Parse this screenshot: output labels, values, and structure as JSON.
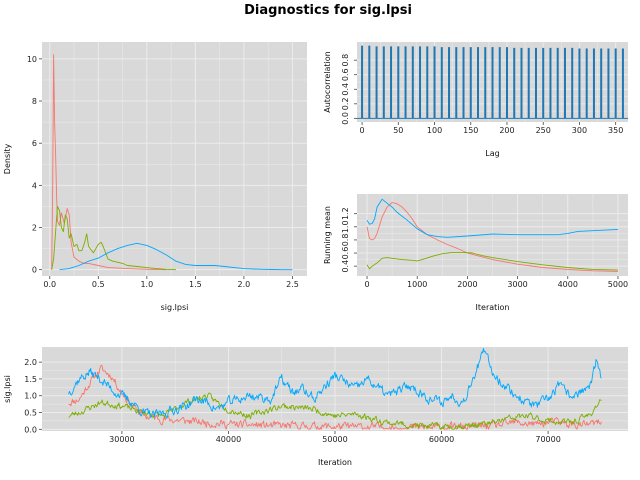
{
  "title": "Diagnostics for sig.lpsi",
  "colors": {
    "panel": "#d9d9d9",
    "grid": "#ececec",
    "series": [
      "#f8766d",
      "#7cae00",
      "#00a9ff"
    ],
    "acf": "#1f77b4"
  },
  "chart_data": [
    {
      "type": "line",
      "name": "density",
      "xlabel": "sig.lpsi",
      "ylabel": "Density",
      "xlim": [
        -0.08,
        2.65
      ],
      "ylim": [
        -0.3,
        10.8
      ],
      "xticks": [
        "0.0",
        "0.5",
        "1.0",
        "1.5",
        "2.0",
        "2.5"
      ],
      "yticks": [
        "0",
        "2",
        "4",
        "6",
        "8",
        "10"
      ],
      "series": [
        {
          "x": [
            0.02,
            0.03,
            0.04,
            0.05,
            0.06,
            0.07,
            0.08,
            0.1,
            0.12,
            0.15,
            0.18,
            0.2,
            0.22,
            0.25,
            0.3,
            0.35,
            0.4,
            0.5,
            0.6,
            0.8,
            1.0,
            1.2
          ],
          "values": [
            0,
            4,
            10.2,
            7,
            5.5,
            3.5,
            2.3,
            2.1,
            2.7,
            2.2,
            2.9,
            2.6,
            1.3,
            0.6,
            0.4,
            0.3,
            0.3,
            0.2,
            0.1,
            0.05,
            0.02,
            0
          ]
        },
        {
          "x": [
            0.02,
            0.04,
            0.06,
            0.08,
            0.1,
            0.12,
            0.14,
            0.16,
            0.18,
            0.2,
            0.22,
            0.25,
            0.28,
            0.3,
            0.33,
            0.36,
            0.38,
            0.4,
            0.45,
            0.5,
            0.53,
            0.55,
            0.6,
            0.65,
            0.7,
            0.75,
            0.8,
            0.9,
            1.0,
            1.1,
            1.2,
            1.3
          ],
          "values": [
            0,
            0.5,
            1.8,
            3.0,
            2.8,
            2.0,
            1.8,
            2.6,
            2.4,
            1.5,
            1.7,
            1.1,
            1.2,
            0.9,
            0.9,
            1.3,
            1.7,
            1.1,
            0.8,
            1.2,
            1.3,
            1.1,
            0.5,
            0.4,
            0.35,
            0.3,
            0.2,
            0.15,
            0.1,
            0.05,
            0.02,
            0
          ]
        },
        {
          "x": [
            0.1,
            0.2,
            0.3,
            0.4,
            0.5,
            0.6,
            0.7,
            0.8,
            0.9,
            1.0,
            1.1,
            1.2,
            1.3,
            1.4,
            1.5,
            1.6,
            1.7,
            1.8,
            1.9,
            2.0,
            2.1,
            2.2,
            2.3,
            2.4,
            2.5
          ],
          "values": [
            0,
            0.05,
            0.2,
            0.4,
            0.55,
            0.8,
            1.0,
            1.15,
            1.25,
            1.15,
            0.95,
            0.7,
            0.4,
            0.25,
            0.2,
            0.2,
            0.2,
            0.15,
            0.1,
            0.05,
            0.03,
            0.02,
            0.01,
            0,
            0
          ]
        }
      ]
    },
    {
      "type": "bar",
      "name": "autocorrelation",
      "xlabel": "Lag",
      "ylabel": "Autocorrelation",
      "xlim": [
        -7,
        367
      ],
      "ylim": [
        -0.05,
        1.05
      ],
      "xticks": [
        "0",
        "50",
        "100",
        "150",
        "200",
        "250",
        "300",
        "350"
      ],
      "yticks": [
        "0.0",
        "0.2",
        "0.4",
        "0.6",
        "0.8"
      ],
      "lags": [
        0,
        10,
        20,
        30,
        40,
        50,
        60,
        70,
        80,
        90,
        100,
        110,
        120,
        130,
        140,
        150,
        160,
        170,
        180,
        190,
        200,
        210,
        220,
        230,
        240,
        250,
        260,
        270,
        280,
        290,
        300,
        310,
        320,
        330,
        340,
        350,
        360
      ],
      "values": [
        1.0,
        1.0,
        0.99,
        0.99,
        0.99,
        0.99,
        0.99,
        0.99,
        0.99,
        0.99,
        0.99,
        0.98,
        0.98,
        0.98,
        0.98,
        0.98,
        0.98,
        0.98,
        0.98,
        0.98,
        0.98,
        0.97,
        0.97,
        0.97,
        0.97,
        0.97,
        0.97,
        0.97,
        0.97,
        0.97,
        0.96,
        0.96,
        0.96,
        0.96,
        0.96,
        0.96,
        0.96
      ]
    },
    {
      "type": "line",
      "name": "running-mean",
      "xlabel": "Iteration",
      "ylabel": "Running mean",
      "xlim": [
        -200,
        5200
      ],
      "ylim": [
        0.25,
        1.5
      ],
      "xticks": [
        "0",
        "1000",
        "2000",
        "3000",
        "4000",
        "5000"
      ],
      "yticks": [
        "0.4",
        "0.6",
        "0.8",
        "1.0",
        "1.2"
      ],
      "series": [
        {
          "x": [
            0,
            50,
            100,
            150,
            200,
            300,
            400,
            500,
            600,
            700,
            800,
            900,
            1000,
            1200,
            1400,
            1600,
            1800,
            2000,
            2500,
            3000,
            3500,
            4000,
            4500,
            5000
          ],
          "values": [
            1.0,
            0.82,
            0.8,
            0.82,
            0.9,
            1.15,
            1.3,
            1.37,
            1.35,
            1.3,
            1.22,
            1.12,
            1.0,
            0.88,
            0.8,
            0.73,
            0.67,
            0.6,
            0.5,
            0.43,
            0.38,
            0.35,
            0.33,
            0.32
          ]
        },
        {
          "x": [
            0,
            50,
            100,
            200,
            300,
            400,
            500,
            700,
            900,
            1000,
            1100,
            1300,
            1500,
            1700,
            1900,
            2100,
            2300,
            2500,
            3000,
            3500,
            4000,
            4500,
            5000
          ],
          "values": [
            0.42,
            0.36,
            0.4,
            0.45,
            0.52,
            0.53,
            0.52,
            0.5,
            0.49,
            0.48,
            0.5,
            0.55,
            0.59,
            0.61,
            0.61,
            0.6,
            0.56,
            0.53,
            0.47,
            0.42,
            0.38,
            0.35,
            0.34
          ]
        },
        {
          "x": [
            0,
            50,
            100,
            150,
            200,
            300,
            400,
            500,
            600,
            800,
            1000,
            1200,
            1400,
            1600,
            2000,
            2500,
            3000,
            3500,
            3800,
            4000,
            4200,
            4500,
            5000
          ],
          "values": [
            1.1,
            1.04,
            1.05,
            1.12,
            1.3,
            1.42,
            1.36,
            1.3,
            1.22,
            1.1,
            0.97,
            0.88,
            0.85,
            0.84,
            0.86,
            0.89,
            0.88,
            0.88,
            0.88,
            0.9,
            0.93,
            0.94,
            0.96
          ]
        }
      ]
    },
    {
      "type": "line",
      "name": "trace",
      "xlabel": "Iteration",
      "ylabel": "sig.lpsi",
      "xlim": [
        22500,
        77500
      ],
      "ylim": [
        -0.05,
        2.45
      ],
      "xticks": [
        "30000",
        "40000",
        "50000",
        "60000",
        "70000"
      ],
      "yticks": [
        "0.0",
        "0.5",
        "1.0",
        "1.5",
        "2.0"
      ],
      "series": [
        {
          "seed": 11,
          "noise": 0.1,
          "x": [
            25000,
            26000,
            27000,
            28000,
            29000,
            30000,
            31000,
            32000,
            34000,
            36000,
            40000,
            45000,
            50000,
            55000,
            60000,
            63000,
            65000,
            67000,
            69000,
            70000,
            71000,
            73000,
            74000,
            75000
          ],
          "values": [
            0.8,
            0.9,
            1.4,
            1.8,
            1.6,
            1.1,
            0.7,
            0.4,
            0.3,
            0.25,
            0.15,
            0.1,
            0.08,
            0.06,
            0.05,
            0.08,
            0.1,
            0.2,
            0.15,
            0.22,
            0.2,
            0.12,
            0.15,
            0.2
          ]
        },
        {
          "seed": 23,
          "noise": 0.08,
          "x": [
            25000,
            26000,
            28000,
            30000,
            31000,
            32000,
            34000,
            36000,
            38000,
            40000,
            42000,
            45000,
            48000,
            50000,
            52000,
            55000,
            58000,
            60000,
            62000,
            64000,
            65000,
            66000,
            68000,
            70000,
            72000,
            73000,
            74000,
            74500,
            75000
          ],
          "values": [
            0.4,
            0.5,
            0.8,
            0.7,
            0.6,
            0.5,
            0.4,
            0.8,
            1.0,
            0.6,
            0.4,
            0.7,
            0.6,
            0.4,
            0.45,
            0.2,
            0.1,
            0.08,
            0.1,
            0.15,
            0.2,
            0.3,
            0.4,
            0.25,
            0.2,
            0.3,
            0.45,
            0.7,
            0.9
          ]
        },
        {
          "seed": 37,
          "noise": 0.12,
          "x": [
            25000,
            26000,
            27000,
            28000,
            29000,
            30000,
            31000,
            32000,
            33000,
            34000,
            35000,
            36000,
            37000,
            38000,
            39000,
            40000,
            42000,
            44000,
            45000,
            46000,
            47000,
            48000,
            50000,
            52000,
            53000,
            55000,
            57000,
            58000,
            59000,
            60000,
            61000,
            62000,
            63000,
            64000,
            65000,
            66000,
            67000,
            68000,
            69000,
            70000,
            71000,
            72000,
            73000,
            74000,
            74500,
            75000
          ],
          "values": [
            1.1,
            1.5,
            1.7,
            1.5,
            1.2,
            1.0,
            0.8,
            0.5,
            0.4,
            0.5,
            0.6,
            0.7,
            0.9,
            0.8,
            0.6,
            0.8,
            1.0,
            0.9,
            1.5,
            1.1,
            1.2,
            0.9,
            1.6,
            1.2,
            1.5,
            1.0,
            1.3,
            1.1,
            0.9,
            0.8,
            1.0,
            0.8,
            1.6,
            2.3,
            1.6,
            1.3,
            1.0,
            0.8,
            0.7,
            0.9,
            1.3,
            1.0,
            1.1,
            1.3,
            2.0,
            1.5
          ]
        }
      ]
    }
  ]
}
